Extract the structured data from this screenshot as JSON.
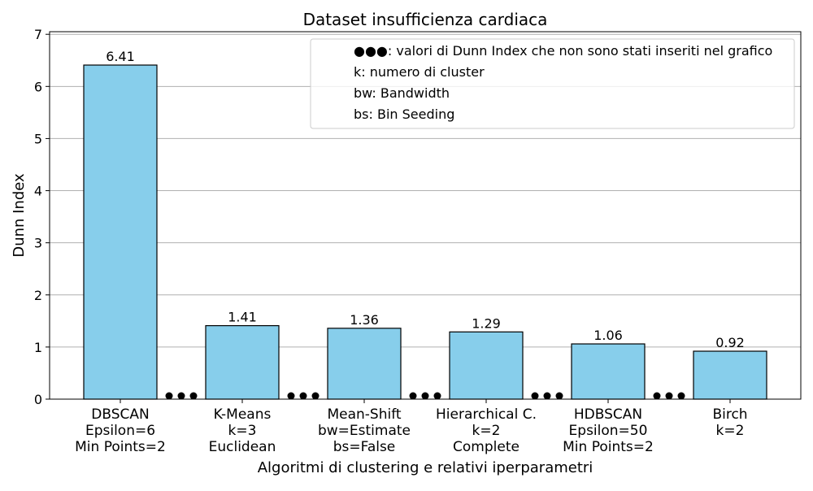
{
  "chart_data": {
    "type": "bar",
    "title": "Dataset insufficienza cardiaca",
    "xlabel": "Algoritmi di clustering e relativi iperparametri",
    "ylabel": "Dunn Index",
    "ylim": [
      0,
      7.05
    ],
    "yticks": [
      0,
      1,
      2,
      3,
      4,
      5,
      6,
      7
    ],
    "grid": "y",
    "bar_color": "#87ceeb",
    "edge_color": "#000000",
    "categories": [
      [
        "DBSCAN",
        "Epsilon=6",
        "Min Points=2"
      ],
      [
        "K-Means",
        "k=3",
        "Euclidean"
      ],
      [
        "Mean-Shift",
        "bw=Estimate",
        "bs=False"
      ],
      [
        "Hierarchical C.",
        "k=2",
        "Complete"
      ],
      [
        "HDBSCAN",
        "Epsilon=50",
        "Min Points=2"
      ],
      [
        "Birch",
        "k=2"
      ]
    ],
    "values": [
      6.41,
      1.41,
      1.36,
      1.29,
      1.06,
      0.92
    ],
    "value_labels": [
      "6.41",
      "1.41",
      "1.36",
      "1.29",
      "1.06",
      "0.92"
    ],
    "gap_markers": "●●●",
    "legend": {
      "position": "top-right",
      "entries": [
        "●●●: valori di Dunn Index che non sono stati inseriti nel grafico",
        "k: numero di cluster",
        "bw: Bandwidth",
        "bs: Bin Seeding"
      ]
    }
  }
}
